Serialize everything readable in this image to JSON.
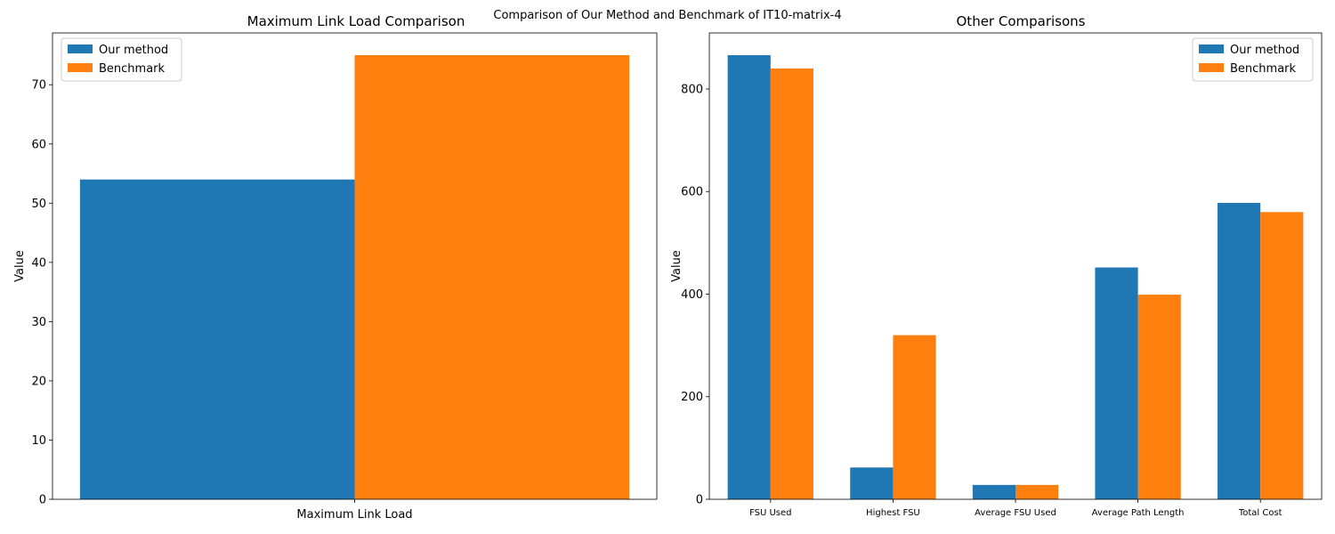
{
  "figure": {
    "suptitle": "Comparison of Our Method and Benchmark of IT10-matrix-4"
  },
  "chart_data": [
    {
      "type": "bar",
      "title": "Maximum Link Load Comparison",
      "xlabel": "",
      "ylabel": "Value",
      "categories": [
        "Maximum Link Load"
      ],
      "series": [
        {
          "name": "Our method",
          "values": [
            54
          ],
          "color": "#1f77b4"
        },
        {
          "name": "Benchmark",
          "values": [
            75
          ],
          "color": "#ff7f0e"
        }
      ],
      "ylim": [
        0,
        78.75
      ],
      "yticks": [
        0,
        10,
        20,
        30,
        40,
        50,
        60,
        70
      ],
      "legend": "top-left",
      "grid": false
    },
    {
      "type": "bar",
      "title": "Other Comparisons",
      "xlabel": "",
      "ylabel": "Value",
      "categories": [
        "FSU Used",
        "Highest FSU",
        "Average FSU Used",
        "Average Path Length",
        "Total Cost"
      ],
      "series": [
        {
          "name": "Our method",
          "values": [
            866,
            62,
            28,
            452,
            578
          ],
          "color": "#1f77b4"
        },
        {
          "name": "Benchmark",
          "values": [
            840,
            320,
            28,
            399,
            560
          ],
          "color": "#ff7f0e"
        }
      ],
      "ylim": [
        0,
        909.3
      ],
      "yticks": [
        0,
        200,
        400,
        600,
        800
      ],
      "legend": "top-right",
      "grid": false
    }
  ]
}
